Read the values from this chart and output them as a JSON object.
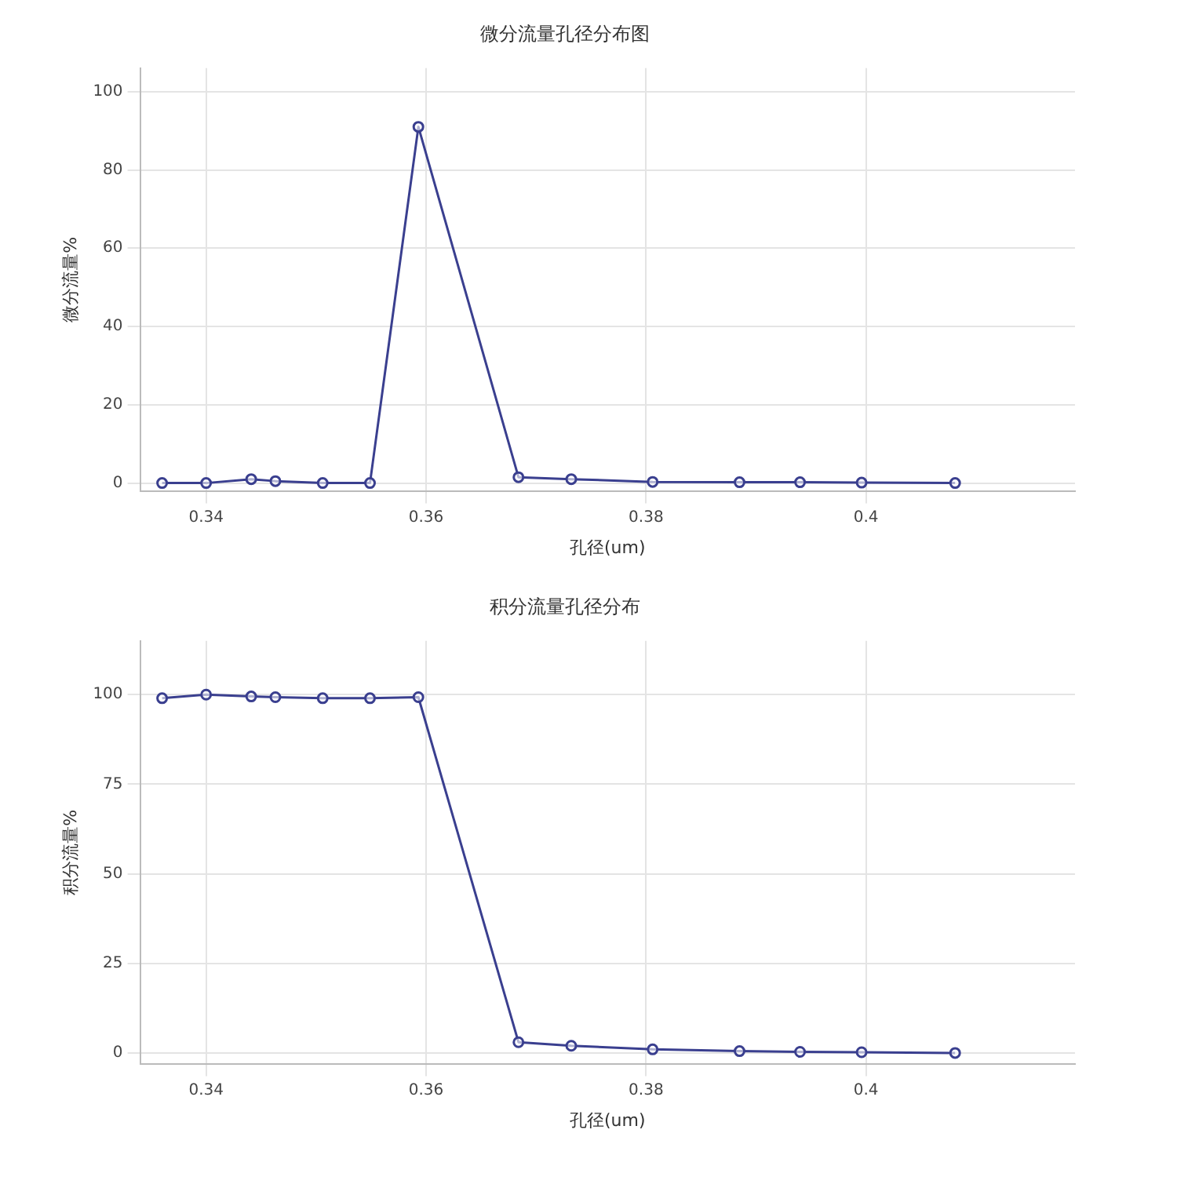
{
  "chart_data": [
    {
      "type": "line",
      "title": "微分流量孔径分布图",
      "xlabel": "孔径(um)",
      "ylabel": "微分流量%",
      "x": [
        0.336,
        0.34,
        0.3441,
        0.3463,
        0.3506,
        0.3549,
        0.3593,
        0.3684,
        0.3732,
        0.3806,
        0.3885,
        0.394,
        0.3996,
        0.4081
      ],
      "series": [
        {
          "color": "#3a3f8f",
          "values": [
            0,
            0,
            1,
            0.5,
            0,
            0,
            91,
            1.5,
            1,
            0.3,
            0.2,
            0.2,
            0.1,
            0
          ]
        }
      ],
      "xlim": [
        0.334,
        0.419
      ],
      "xticks": [
        {
          "value": 0.34,
          "label": "0.34"
        },
        {
          "value": 0.36,
          "label": "0.36"
        },
        {
          "value": 0.38,
          "label": "0.38"
        },
        {
          "value": 0.4,
          "label": "0.4"
        }
      ],
      "ylim": [
        -2,
        106
      ],
      "yticks": [
        0,
        20,
        40,
        60,
        80,
        100
      ],
      "grid": true,
      "legend": false,
      "marker": "circle",
      "line_style": "solid"
    },
    {
      "type": "line",
      "title": "积分流量孔径分布",
      "xlabel": "孔径(um)",
      "ylabel": "积分流量%",
      "x": [
        0.336,
        0.34,
        0.3441,
        0.3463,
        0.3506,
        0.3549,
        0.3593,
        0.3684,
        0.3732,
        0.3806,
        0.3885,
        0.394,
        0.3996,
        0.4081
      ],
      "series": [
        {
          "color": "#3a3f8f",
          "values": [
            99,
            100,
            99.5,
            99.3,
            99,
            99,
            99.3,
            3,
            2,
            1,
            0.5,
            0.3,
            0.2,
            0
          ]
        }
      ],
      "xlim": [
        0.334,
        0.419
      ],
      "xticks": [
        {
          "value": 0.34,
          "label": "0.34"
        },
        {
          "value": 0.36,
          "label": "0.36"
        },
        {
          "value": 0.38,
          "label": "0.38"
        },
        {
          "value": 0.4,
          "label": "0.4"
        }
      ],
      "ylim": [
        -3,
        115
      ],
      "yticks": [
        0,
        25,
        50,
        75,
        100
      ],
      "grid": true,
      "legend": false,
      "marker": "circle",
      "line_style": "solid"
    }
  ]
}
